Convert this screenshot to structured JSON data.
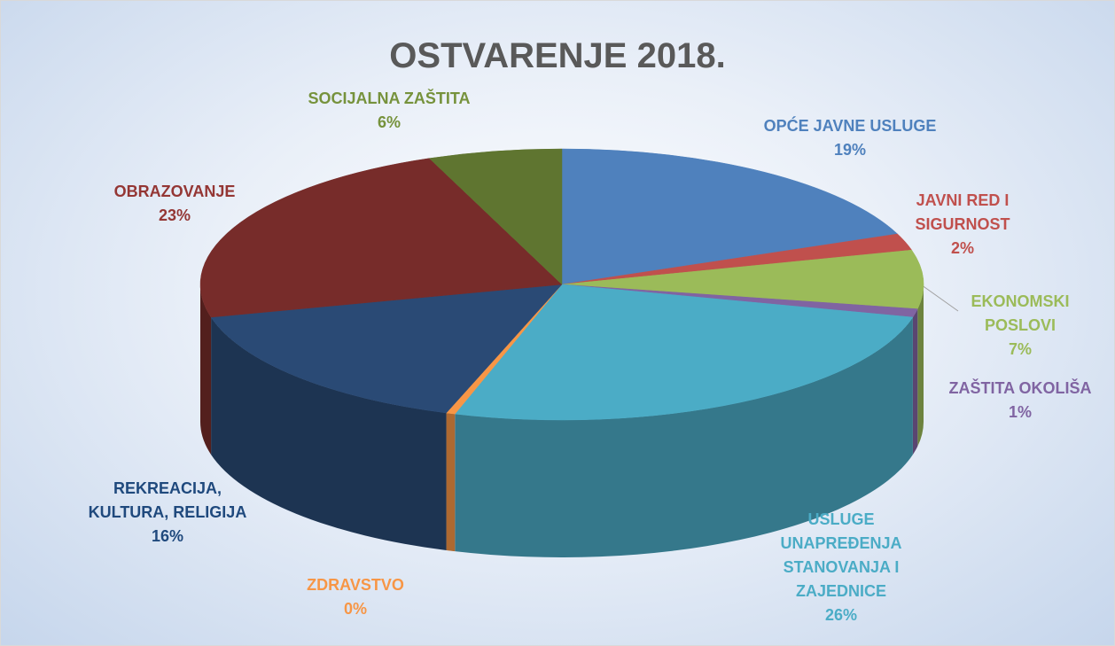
{
  "chart_data": {
    "type": "pie",
    "title": "OSTVARENJE 2018.",
    "categories": [
      "OPĆE JAVNE USLUGE",
      "JAVNI RED I SIGURNOST",
      "EKONOMSKI POSLOVI",
      "ZAŠTITA OKOLIŠA",
      "USLUGE UNAPREĐENJA STANOVANJA I ZAJEDNICE",
      "ZDRAVSTVO",
      "REKREACIJA, KULTURA, RELIGIJA",
      "OBRAZOVANJE",
      "SOCIJALNA ZAŠTITA"
    ],
    "values": [
      19,
      2,
      7,
      1,
      26,
      0.4,
      16,
      23,
      6
    ],
    "value_labels": [
      "19%",
      "2%",
      "7%",
      "1%",
      "26%",
      "0%",
      "16%",
      "23%",
      "6%"
    ],
    "colors": [
      "#4f81bd",
      "#c0504d",
      "#9bbb59",
      "#8064a2",
      "#4bacc6",
      "#f79646",
      "#2a4a75",
      "#772c2a",
      "#5f7530"
    ],
    "label_colors": [
      "#4f81bd",
      "#c0504d",
      "#9bbb59",
      "#8064a2",
      "#4bacc6",
      "#f79646",
      "#1f497d",
      "#943634",
      "#76923c"
    ]
  }
}
